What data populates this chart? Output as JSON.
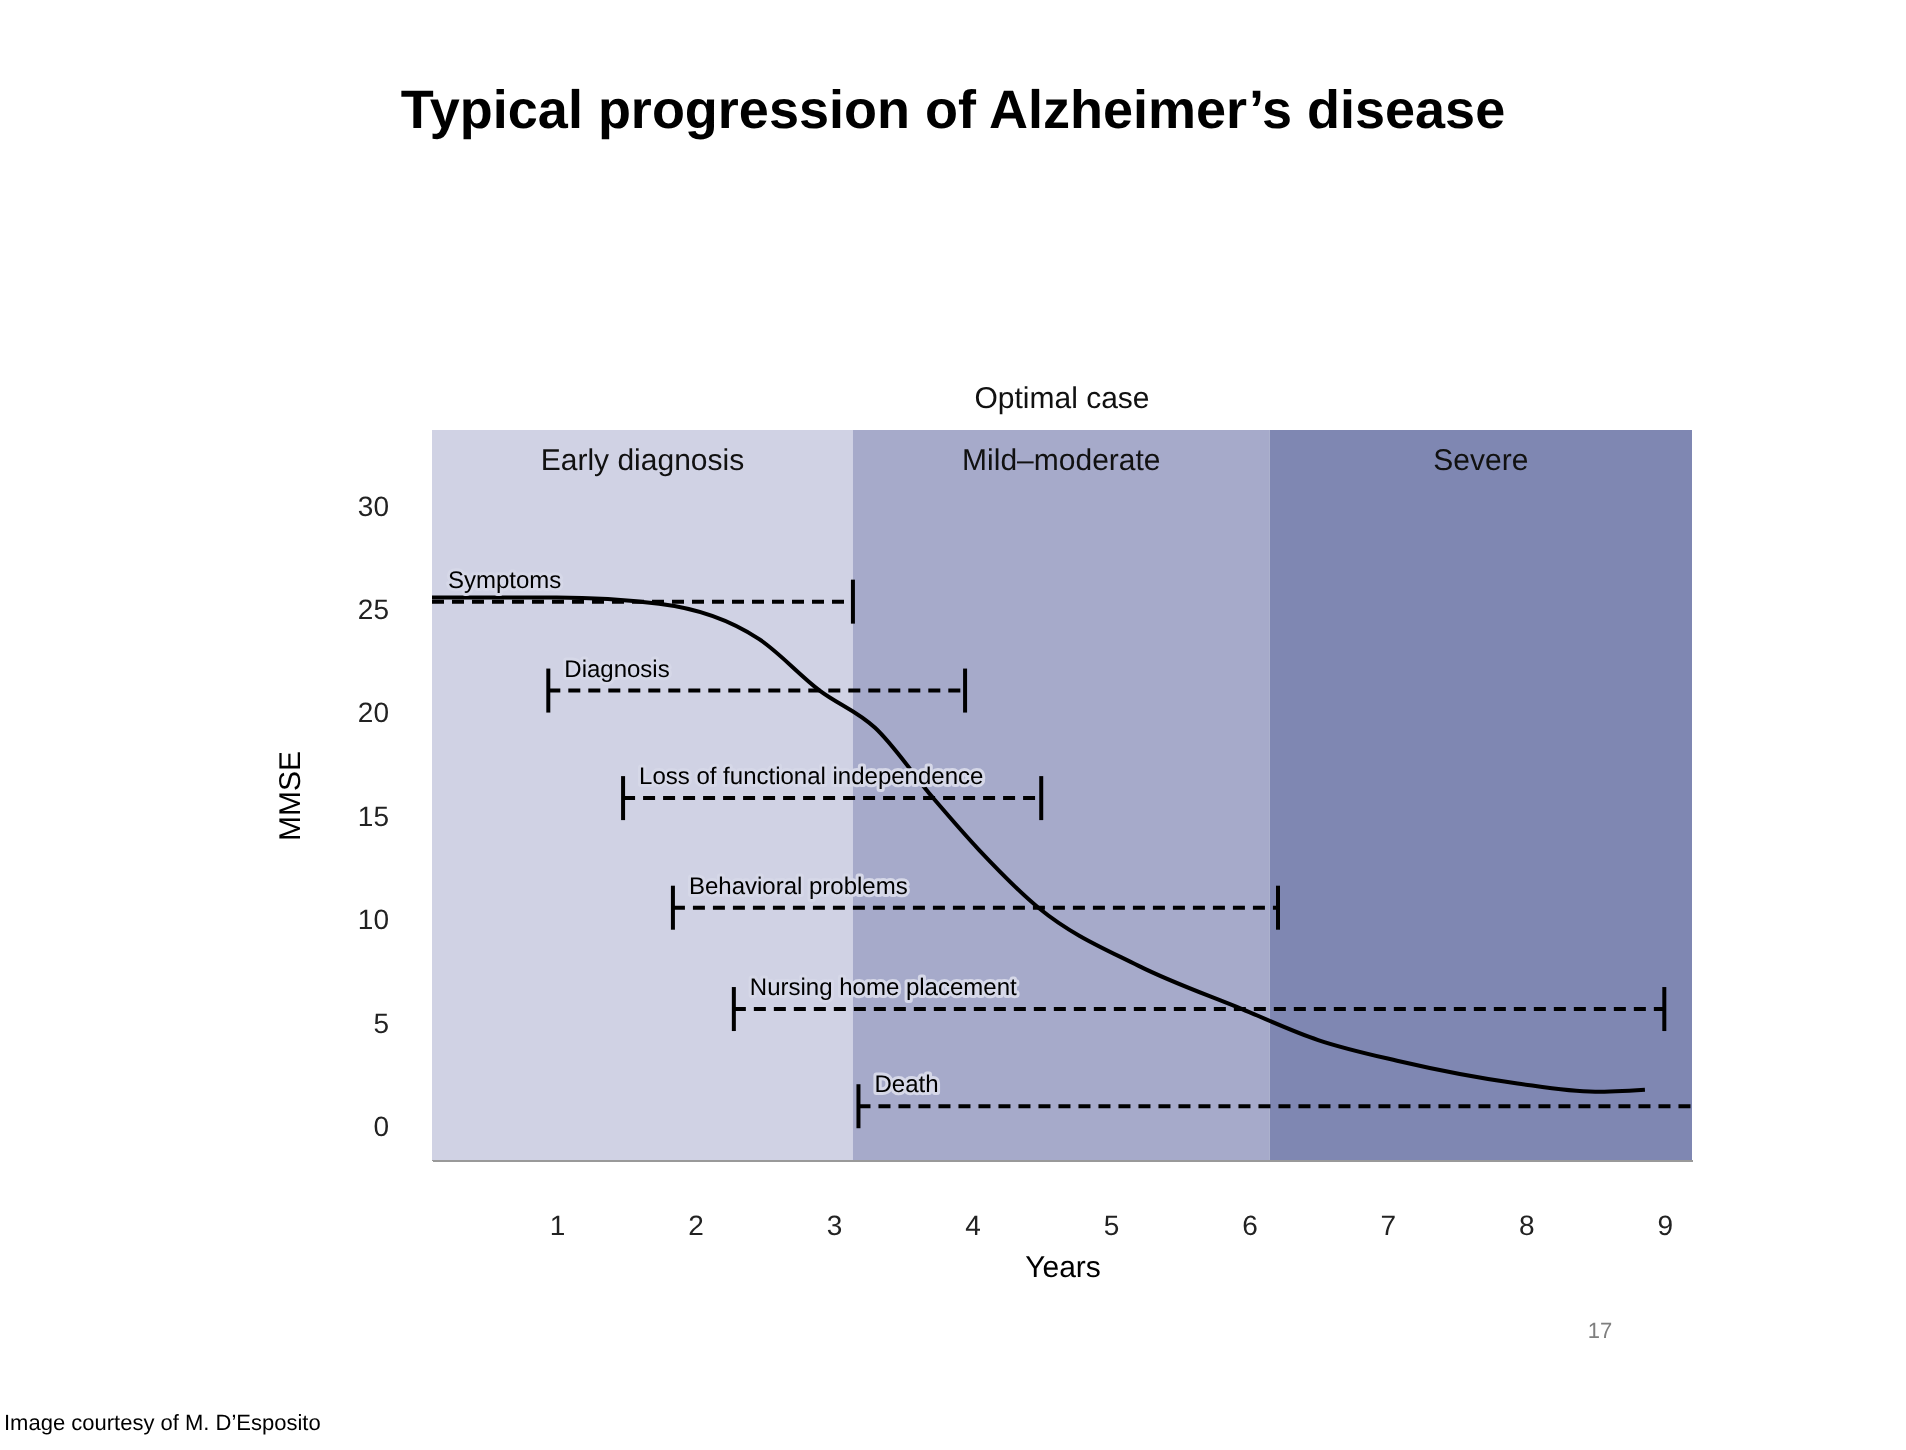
{
  "chart_data": {
    "type": "line",
    "title": "Typical progression of Alzheimer’s disease",
    "subtitle": "Optimal case",
    "xlabel": "Years",
    "ylabel": "MMSE",
    "xlim": [
      0.1,
      9.2
    ],
    "xticks": [
      1,
      2,
      3,
      4,
      5,
      6,
      7,
      8,
      9
    ],
    "ylim": [
      -1.6,
      33.7
    ],
    "yticks": [
      0,
      5,
      10,
      15,
      20,
      25,
      30
    ],
    "grid": false,
    "bands": [
      {
        "axis": "x",
        "from": 0.1,
        "to": 3.14,
        "label": "Early diagnosis",
        "color": "#d0d2e4"
      },
      {
        "axis": "x",
        "from": 3.14,
        "to": 6.15,
        "label": "Mild–moderate",
        "color": "#a6aaca"
      },
      {
        "axis": "x",
        "from": 6.15,
        "to": 9.2,
        "label": "Severe",
        "color": "#7f87b2"
      }
    ],
    "series": [
      {
        "color": "#000000",
        "line_style": "solid",
        "x": [
          0.1,
          1,
          1.74,
          2.46,
          2.9,
          3.3,
          3.72,
          4.05,
          4.48,
          5.2,
          5.95,
          6.5,
          7.07,
          7.94,
          8.5,
          8.86
        ],
        "values": [
          25.6,
          25.6,
          25.3,
          23.6,
          21.1,
          19.3,
          15.9,
          13.4,
          10.6,
          7.8,
          5.7,
          4.2,
          3.2,
          2.1,
          1.7,
          1.8
        ]
      },
      {
        "name": "Symptoms",
        "color": "#000000",
        "line_style": "dashed",
        "x": [
          0.1,
          3.14
        ],
        "values": [
          25.4,
          25.4
        ]
      },
      {
        "name": "Diagnosis",
        "color": "#000000",
        "line_style": "dashed",
        "x": [
          0.94,
          3.95
        ],
        "values": [
          21.1,
          21.1
        ]
      },
      {
        "name": "Loss of functional independence",
        "color": "#000000",
        "line_style": "dashed",
        "x": [
          1.48,
          4.5
        ],
        "values": [
          15.9,
          15.9
        ]
      },
      {
        "name": "Behavioral problems",
        "color": "#000000",
        "line_style": "dashed",
        "x": [
          1.84,
          6.21
        ],
        "values": [
          10.6,
          10.6
        ]
      },
      {
        "name": "Nursing home placement",
        "color": "#000000",
        "line_style": "dashed",
        "x": [
          2.28,
          9.0
        ],
        "values": [
          5.7,
          5.7
        ]
      },
      {
        "name": "Death",
        "color": "#000000",
        "line_style": "dashed",
        "x": [
          3.18,
          9.2
        ],
        "values": [
          1.0,
          1.0
        ]
      }
    ],
    "annotations": [
      "17",
      "Image courtesy of M. D’Esposito"
    ]
  }
}
